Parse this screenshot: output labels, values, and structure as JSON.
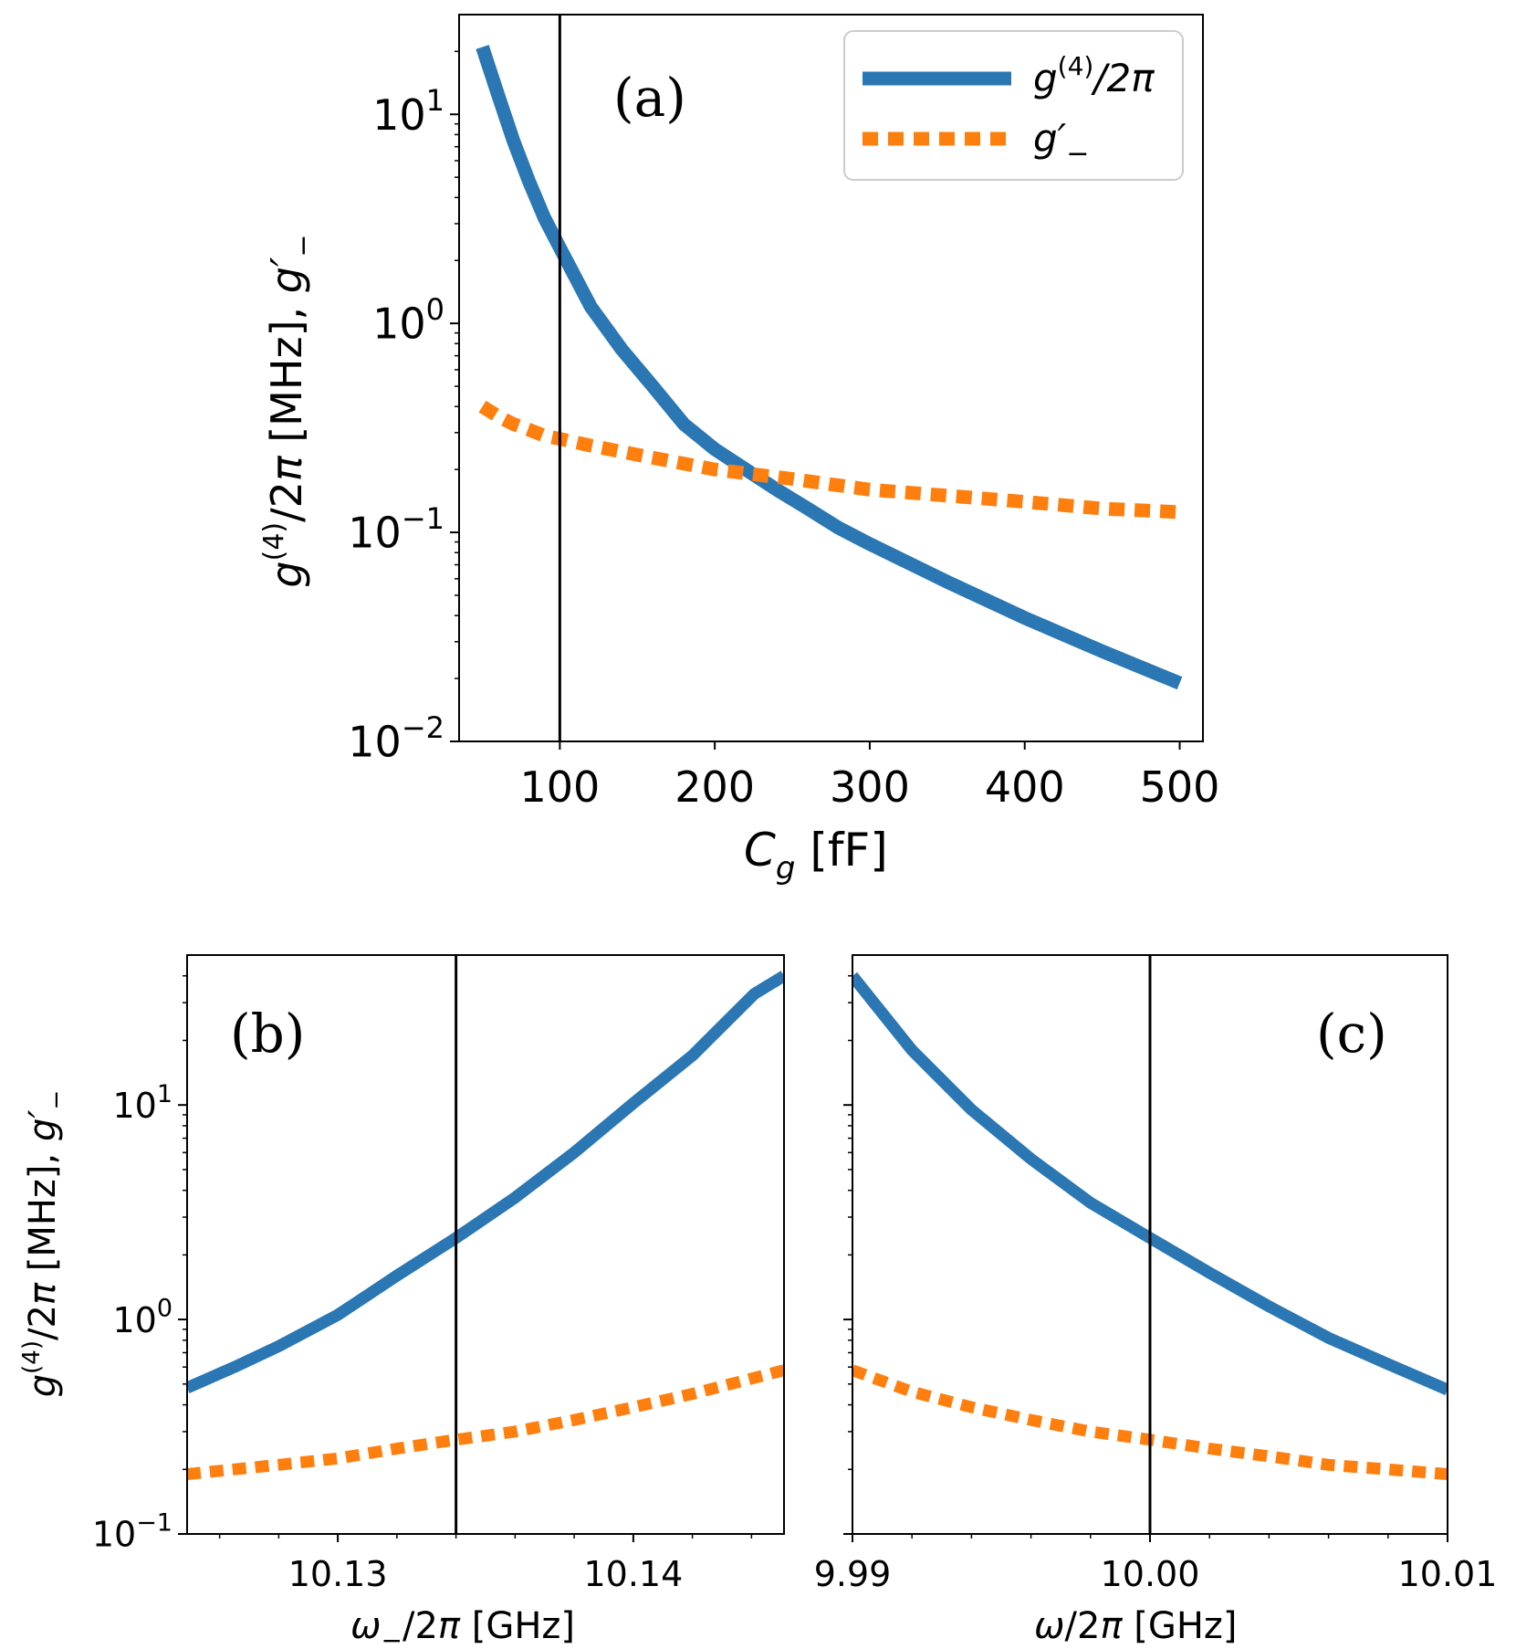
{
  "colors": {
    "blue": "#2a77b4",
    "orange": "#ff7f0e",
    "vline": "#000000",
    "legend_border": "#cccccc"
  },
  "chart_data": [
    {
      "id": "a",
      "type": "line",
      "panel_label": "(a)",
      "xlabel": "C_g [fF]",
      "ylabel": "g^(4)/2π [MHz], g′_−",
      "yscale": "log",
      "xlim": [
        35,
        515
      ],
      "ylim": [
        0.01,
        30
      ],
      "xticks": [
        100,
        200,
        300,
        400,
        500
      ],
      "xtick_labels": [
        "100",
        "200",
        "300",
        "400",
        "500"
      ],
      "yticks": [
        0.01,
        0.1,
        1,
        10
      ],
      "ytick_labels": [
        [
          "10",
          "−2"
        ],
        [
          "10",
          "−1"
        ],
        [
          "10",
          "0"
        ],
        [
          "10",
          "1"
        ]
      ],
      "vline_x": 100,
      "legend": [
        {
          "series": "g4",
          "label_base": "g",
          "label_sup": "(4)",
          "label_rest": "/2π"
        },
        {
          "series": "gm",
          "label_base": "g′",
          "label_sub": "−"
        }
      ],
      "series": [
        {
          "name": "g4",
          "color": "blue",
          "style": "solid",
          "x": [
            50,
            60,
            70,
            80,
            90,
            100,
            120,
            140,
            160,
            180,
            200,
            220,
            240,
            260,
            280,
            300,
            350,
            400,
            450,
            500
          ],
          "y": [
            21,
            12.5,
            7.5,
            4.8,
            3.2,
            2.3,
            1.2,
            0.75,
            0.5,
            0.33,
            0.25,
            0.2,
            0.16,
            0.13,
            0.105,
            0.088,
            0.058,
            0.039,
            0.027,
            0.019
          ]
        },
        {
          "name": "gm",
          "color": "orange",
          "style": "dotted",
          "x": [
            50,
            60,
            70,
            80,
            90,
            100,
            120,
            150,
            200,
            250,
            300,
            350,
            400,
            450,
            500
          ],
          "y": [
            0.4,
            0.36,
            0.33,
            0.31,
            0.29,
            0.28,
            0.26,
            0.235,
            0.2,
            0.18,
            0.16,
            0.15,
            0.14,
            0.13,
            0.125
          ]
        }
      ]
    },
    {
      "id": "b",
      "type": "line",
      "panel_label": "(b)",
      "xlabel": "ω_−/2π [GHz]",
      "ylabel": "g^(4)/2π [MHz], g′_−",
      "yscale": "log",
      "xlim": [
        10.1249,
        10.1451
      ],
      "ylim": [
        0.1,
        50
      ],
      "xticks": [
        10.13,
        10.14
      ],
      "xtick_labels": [
        "10.13",
        "10.14"
      ],
      "yticks": [
        0.1,
        1,
        10
      ],
      "ytick_labels": [
        [
          "10",
          "−1"
        ],
        [
          "10",
          "0"
        ],
        [
          "10",
          "1"
        ]
      ],
      "vline_x": 10.134,
      "series": [
        {
          "name": "g4",
          "color": "blue",
          "style": "solid",
          "x": [
            10.1249,
            10.1265,
            10.128,
            10.13,
            10.132,
            10.134,
            10.136,
            10.138,
            10.14,
            10.142,
            10.1441,
            10.1451
          ],
          "y": [
            0.48,
            0.6,
            0.75,
            1.05,
            1.6,
            2.4,
            3.7,
            6.0,
            10.2,
            17,
            33,
            40
          ]
        },
        {
          "name": "gm",
          "color": "orange",
          "style": "dotted",
          "x": [
            10.1249,
            10.128,
            10.13,
            10.132,
            10.134,
            10.136,
            10.138,
            10.14,
            10.142,
            10.1451
          ],
          "y": [
            0.19,
            0.21,
            0.225,
            0.25,
            0.275,
            0.3,
            0.34,
            0.39,
            0.45,
            0.58
          ]
        }
      ]
    },
    {
      "id": "c",
      "type": "line",
      "panel_label": "(c)",
      "xlabel": "ω/2π [GHz]",
      "yscale": "log",
      "xlim": [
        9.99,
        10.01
      ],
      "ylim": [
        0.1,
        50
      ],
      "xticks": [
        9.99,
        10.0,
        10.01
      ],
      "xtick_labels": [
        "9.99",
        "10.00",
        "10.01"
      ],
      "yticks": [
        0.1,
        1,
        10
      ],
      "ytick_labels": [],
      "vline_x": 10.0,
      "series": [
        {
          "name": "g4",
          "color": "blue",
          "style": "solid",
          "x": [
            9.99,
            9.992,
            9.994,
            9.996,
            9.998,
            10.0,
            10.002,
            10.004,
            10.006,
            10.008,
            10.01
          ],
          "y": [
            40,
            18,
            9.5,
            5.6,
            3.5,
            2.4,
            1.65,
            1.15,
            0.82,
            0.62,
            0.47
          ]
        },
        {
          "name": "gm",
          "color": "orange",
          "style": "dotted",
          "x": [
            9.99,
            9.992,
            9.994,
            9.996,
            9.998,
            10.0,
            10.002,
            10.004,
            10.006,
            10.008,
            10.01
          ],
          "y": [
            0.58,
            0.46,
            0.39,
            0.34,
            0.3,
            0.275,
            0.25,
            0.23,
            0.21,
            0.2,
            0.19
          ]
        }
      ]
    }
  ]
}
